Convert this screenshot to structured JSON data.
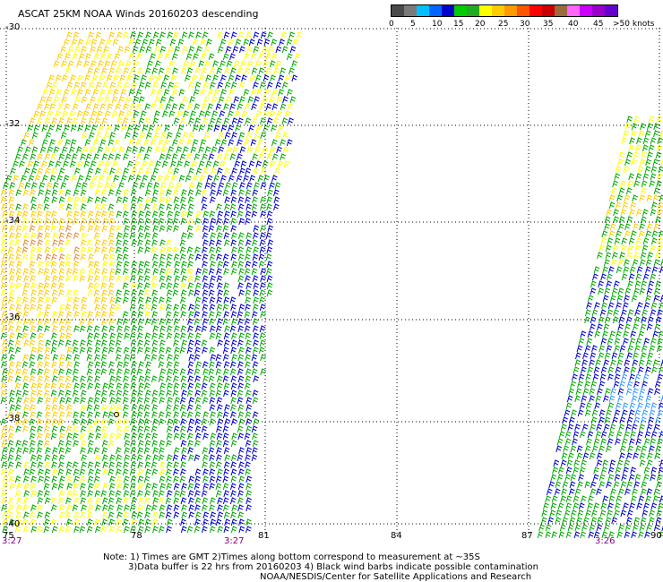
{
  "title": "ASCAT 25KM NOAA Winds 20160203 descending",
  "colorbar": {
    "colors": [
      "#4a4a4a",
      "#7a7a7a",
      "#00bfff",
      "#0066ff",
      "#0000cd",
      "#00cc00",
      "#22aa22",
      "#ffff00",
      "#ffcc00",
      "#ff9900",
      "#ff5500",
      "#ff0000",
      "#cc0000",
      "#9b6b3d",
      "#ff66ff",
      "#cc00ff",
      "#9900cc",
      "#6600cc"
    ],
    "labels": [
      "0",
      "5",
      "10",
      "15",
      "20",
      "25",
      "30",
      "35",
      "40",
      "45",
      ">50 knots"
    ]
  },
  "map": {
    "lat_labels": [
      "-30",
      "-32",
      "-34",
      "-36",
      "-38",
      "-40"
    ],
    "lon_labels": [
      "75",
      "78",
      "81",
      "84",
      "87",
      "90"
    ],
    "time_labels": [
      "3:27",
      "3:27",
      "3:26"
    ],
    "speed_colors": {
      "blue": "#0000cc",
      "light_blue": "#3399ff",
      "green": "#00aa00",
      "yellow": "#ffff00",
      "gold": "#ffcc00",
      "orange": "#e08a3c"
    }
  },
  "notes": {
    "line1": "Note: 1) Times are GMT 2)Times along bottom correspond to measurement at ~35S",
    "line2": "3)Data buffer is 22 hrs from 20160203 4) Black wind barbs indicate possible contamination",
    "line3": "NOAA/NESDIS/Center for Satellite Applications and Research"
  }
}
